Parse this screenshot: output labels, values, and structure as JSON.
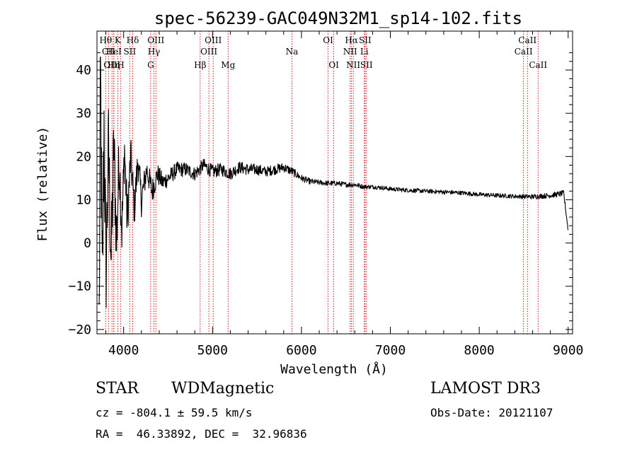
{
  "chart_data": {
    "type": "line",
    "title": "spec-56239-GAC049N32M1_sp14-102.fits",
    "xlabel": "Wavelength (Å)",
    "ylabel": "Flux (relative)",
    "xlim": [
      3700,
      9050
    ],
    "ylim": [
      -21,
      49
    ],
    "xticks": [
      4000,
      5000,
      6000,
      7000,
      8000,
      9000
    ],
    "yticks": [
      -20,
      -10,
      0,
      10,
      20,
      30,
      40
    ],
    "grid": false,
    "line_color": "#cc0000",
    "series_color": "#000000",
    "series_anchors": {
      "name": "Flux",
      "x": [
        3725,
        3740,
        3760,
        3780,
        3800,
        3830,
        3860,
        3890,
        3920,
        3950,
        3980,
        4010,
        4040,
        4080,
        4120,
        4160,
        4200,
        4260,
        4320,
        4380,
        4440,
        4500,
        4600,
        4700,
        4800,
        4900,
        5000,
        5100,
        5200,
        5300,
        5400,
        5500,
        5600,
        5700,
        5800,
        5900,
        6000,
        6100,
        6200,
        6300,
        6400,
        6500,
        6600,
        6700,
        6800,
        6900,
        7000,
        7200,
        7400,
        7600,
        7800,
        8000,
        8200,
        8400,
        8600,
        8800,
        8950,
        9000
      ],
      "y": [
        -18,
        40,
        -14,
        28,
        -8,
        22,
        -4,
        23,
        0,
        20,
        3,
        22,
        5,
        20,
        8,
        19,
        10,
        17,
        12,
        16,
        14,
        15,
        17,
        17,
        16,
        18,
        16.5,
        17,
        16,
        17.5,
        17,
        17,
        16.5,
        17,
        17.5,
        16.5,
        15,
        14.2,
        14,
        13.8,
        13.8,
        13.5,
        13.5,
        13,
        13,
        12.8,
        12.5,
        12.2,
        12,
        11.8,
        11.6,
        11.2,
        11,
        10.8,
        10.7,
        11,
        11.5,
        3
      ],
      "noise": [
        12,
        20,
        18,
        16,
        14,
        12,
        11,
        10,
        9,
        8,
        7,
        6,
        6,
        5,
        5,
        4,
        4,
        3,
        3,
        2.5,
        2.2,
        2,
        1.8,
        1.7,
        1.6,
        1.6,
        1.6,
        1.5,
        1.5,
        1.4,
        1.4,
        1.3,
        1.2,
        1.2,
        1.1,
        1,
        0.8,
        0.7,
        0.6,
        0.6,
        0.6,
        0.6,
        0.6,
        0.5,
        0.5,
        0.5,
        0.5,
        0.5,
        0.5,
        0.5,
        0.5,
        0.5,
        0.5,
        0.5,
        0.6,
        0.6,
        0.7,
        0.5
      ]
    },
    "lines": [
      {
        "label": "Hθ",
        "wl": 3798,
        "row": 1
      },
      {
        "label": "CII",
        "wl": 3830,
        "row": 2
      },
      {
        "label": "OIII",
        "wl": 3869,
        "row": 3
      },
      {
        "label": "K",
        "wl": 3934,
        "row": 1
      },
      {
        "label": "HeI",
        "wl": 3889,
        "row": 2
      },
      {
        "label": "Hη",
        "wl": 3890,
        "row": 3
      },
      {
        "label": "H",
        "wl": 3968,
        "row": 3
      },
      {
        "label": "SII",
        "wl": 4069,
        "row": 2
      },
      {
        "label": "Hδ",
        "wl": 4102,
        "row": 1
      },
      {
        "label": "OIII",
        "wl": 4363,
        "row": 1
      },
      {
        "label": "Hγ",
        "wl": 4341,
        "row": 2
      },
      {
        "label": "G",
        "wl": 4304,
        "row": 3
      },
      {
        "label": "Hβ",
        "wl": 4861,
        "row": 3
      },
      {
        "label": "OIII",
        "wl": 5007,
        "row": 1
      },
      {
        "label": "OIII",
        "wl": 4959,
        "row": 2
      },
      {
        "label": "Mg",
        "wl": 5175,
        "row": 3
      },
      {
        "label": "Na",
        "wl": 5893,
        "row": 2
      },
      {
        "label": "OI",
        "wl": 6300,
        "row": 1
      },
      {
        "label": "OI",
        "wl": 6364,
        "row": 3
      },
      {
        "label": "Hα",
        "wl": 6563,
        "row": 1
      },
      {
        "label": "SII",
        "wl": 6716,
        "row": 1
      },
      {
        "label": "NII",
        "wl": 6548,
        "row": 2
      },
      {
        "label": "Li",
        "wl": 6708,
        "row": 2
      },
      {
        "label": "NII",
        "wl": 6583,
        "row": 3
      },
      {
        "label": "SII",
        "wl": 6731,
        "row": 3
      },
      {
        "label": "CaII",
        "wl": 8542,
        "row": 1
      },
      {
        "label": "CaII",
        "wl": 8498,
        "row": 2
      },
      {
        "label": "CaII",
        "wl": 8662,
        "row": 3
      }
    ]
  },
  "info": {
    "class": "STAR",
    "subclass": "WDMagnetic",
    "survey": "LAMOST DR3",
    "cz": "cz = -804.1 ± 59.5 km/s",
    "obs_date": "Obs-Date: 20121107",
    "radec": "RA =  46.33892, DEC =  32.96836"
  }
}
